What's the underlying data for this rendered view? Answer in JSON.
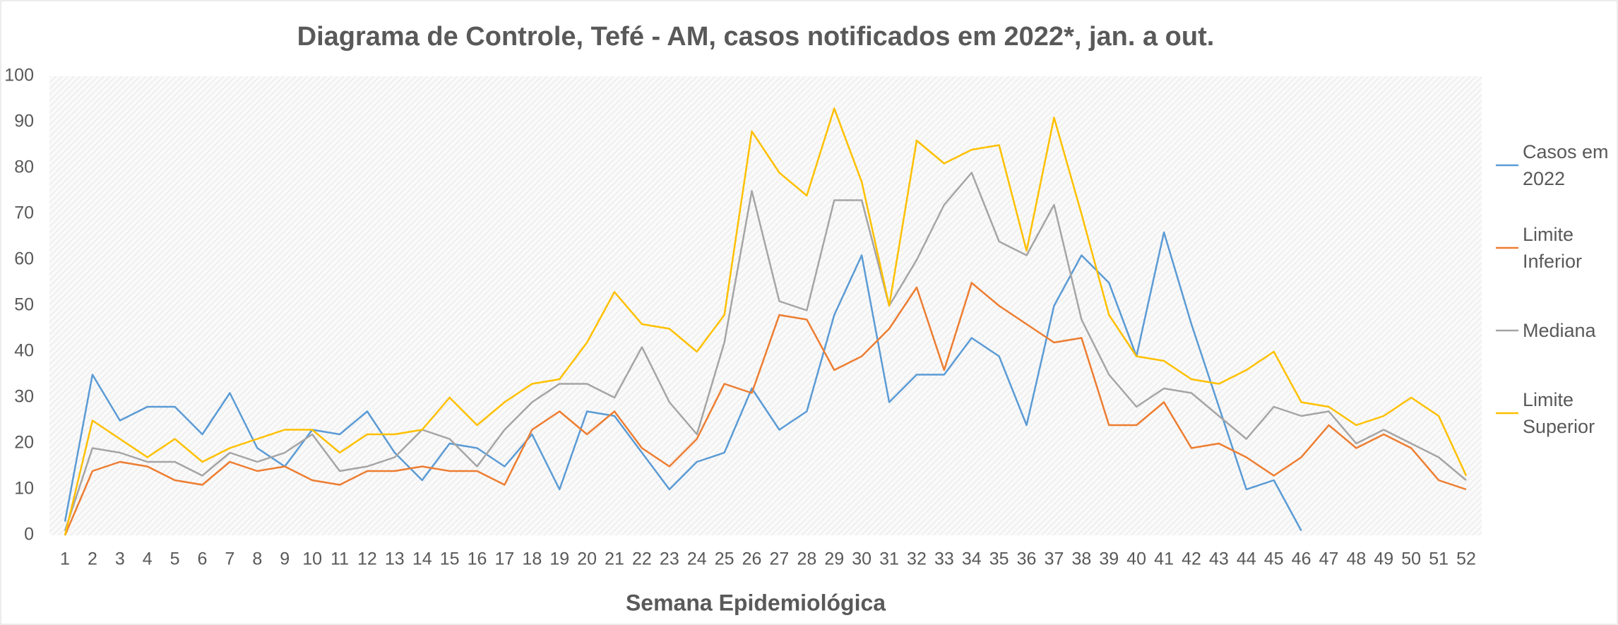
{
  "chart_data": {
    "type": "line",
    "title": "Diagrama de Controle, Tefé - AM, casos notificados em 2022*, jan. a out.",
    "x_label": "Semana Epidemiológica",
    "categories": [
      1,
      2,
      3,
      4,
      5,
      6,
      7,
      8,
      9,
      10,
      11,
      12,
      13,
      14,
      15,
      16,
      17,
      18,
      19,
      20,
      21,
      22,
      23,
      24,
      25,
      26,
      27,
      28,
      29,
      30,
      31,
      32,
      33,
      34,
      35,
      36,
      37,
      38,
      39,
      40,
      41,
      42,
      43,
      44,
      45,
      46,
      47,
      48,
      49,
      50,
      51,
      52
    ],
    "series": [
      {
        "name": "Casos em 2022",
        "color": "#5b9bd5",
        "values": [
          3,
          35,
          25,
          28,
          28,
          22,
          31,
          19,
          15,
          23,
          22,
          27,
          18,
          12,
          20,
          19,
          15,
          22,
          10,
          27,
          26,
          18,
          10,
          16,
          18,
          32,
          23,
          27,
          48,
          61,
          29,
          35,
          35,
          43,
          39,
          24,
          50,
          61,
          55,
          39,
          66,
          46,
          28,
          10,
          12,
          1,
          null,
          null,
          null,
          null,
          null,
          null
        ]
      },
      {
        "name": "Limite Inferior",
        "color": "#ed7d31",
        "values": [
          0,
          14,
          16,
          15,
          12,
          11,
          16,
          14,
          15,
          12,
          11,
          14,
          14,
          15,
          14,
          14,
          11,
          23,
          27,
          22,
          27,
          19,
          15,
          21,
          33,
          31,
          48,
          47,
          36,
          39,
          45,
          54,
          36,
          55,
          50,
          46,
          42,
          43,
          24,
          24,
          29,
          19,
          20,
          17,
          13,
          17,
          24,
          19,
          22,
          19,
          12,
          10
        ]
      },
      {
        "name": "Mediana",
        "color": "#a5a5a5",
        "values": [
          1,
          19,
          18,
          16,
          16,
          13,
          18,
          16,
          18,
          22,
          14,
          15,
          17,
          23,
          21,
          15,
          23,
          29,
          33,
          33,
          30,
          41,
          29,
          22,
          42,
          75,
          51,
          49,
          73,
          73,
          50,
          60,
          72,
          79,
          64,
          61,
          72,
          47,
          35,
          28,
          32,
          31,
          26,
          21,
          28,
          26,
          27,
          20,
          23,
          20,
          17,
          12
        ]
      },
      {
        "name": "Limite Superior",
        "color": "#ffc000",
        "values": [
          0,
          25,
          21,
          17,
          21,
          16,
          19,
          21,
          23,
          23,
          18,
          22,
          22,
          23,
          30,
          24,
          29,
          33,
          34,
          42,
          53,
          46,
          45,
          40,
          48,
          88,
          79,
          74,
          93,
          77,
          50,
          86,
          81,
          84,
          85,
          62,
          91,
          70,
          48,
          39,
          38,
          34,
          33,
          36,
          40,
          29,
          28,
          24,
          26,
          30,
          26,
          13
        ]
      }
    ],
    "ylim": [
      0,
      100
    ],
    "yticks": [
      0,
      10,
      20,
      30,
      40,
      50,
      60,
      70,
      80,
      90,
      100
    ],
    "legend": "right"
  }
}
